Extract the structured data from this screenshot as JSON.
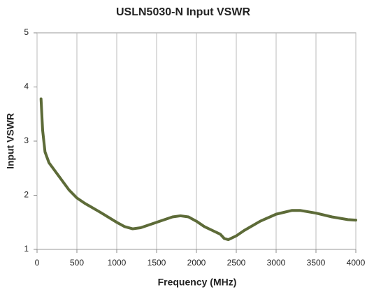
{
  "chart_data": {
    "type": "line",
    "title": "USLN5030-N Input VSWR",
    "x_label": "Frequency (MHz)",
    "y_label": "Input VSWR",
    "x": [
      50,
      70,
      100,
      150,
      200,
      300,
      400,
      500,
      600,
      800,
      1000,
      1100,
      1200,
      1300,
      1500,
      1700,
      1800,
      1900,
      2000,
      2100,
      2200,
      2300,
      2350,
      2400,
      2500,
      2600,
      2800,
      3000,
      3200,
      3300,
      3500,
      3700,
      3900,
      4000
    ],
    "series": [
      {
        "name": "Input VSWR",
        "color": "#5d6b38",
        "values": [
          3.78,
          3.2,
          2.8,
          2.6,
          2.5,
          2.3,
          2.1,
          1.95,
          1.85,
          1.68,
          1.5,
          1.42,
          1.38,
          1.4,
          1.5,
          1.6,
          1.62,
          1.6,
          1.52,
          1.42,
          1.35,
          1.28,
          1.2,
          1.18,
          1.25,
          1.35,
          1.52,
          1.65,
          1.72,
          1.72,
          1.67,
          1.6,
          1.55,
          1.54
        ]
      }
    ],
    "xlim": [
      0,
      4000
    ],
    "xticks": [
      0,
      500,
      1000,
      1500,
      2000,
      2500,
      3000,
      3500,
      4000
    ],
    "ylim": [
      1,
      5
    ],
    "yticks": [
      1,
      2,
      3,
      4,
      5
    ],
    "grid": "x"
  }
}
